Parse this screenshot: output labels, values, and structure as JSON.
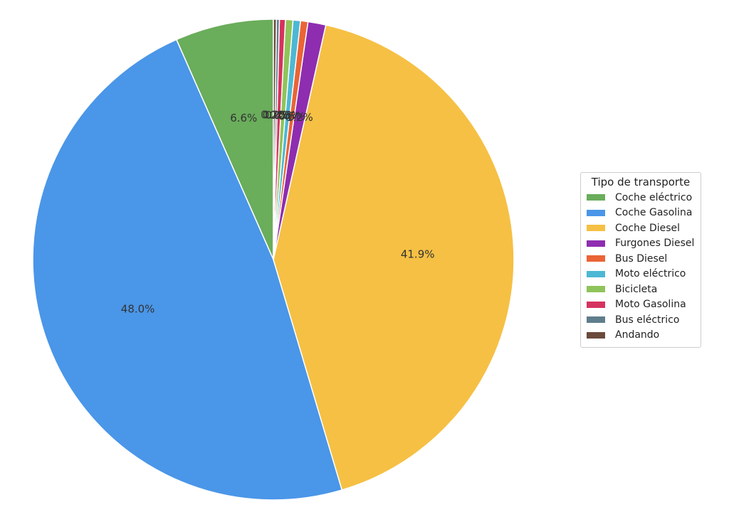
{
  "chart_data": {
    "type": "pie",
    "legend": {
      "title": "Tipo de transporte",
      "position": "right"
    },
    "slices": [
      {
        "label": "Coche eléctrico",
        "value": 6.6,
        "pct_label": "6.6%",
        "color": "#6aad5b"
      },
      {
        "label": "Coche Gasolina",
        "value": 48.0,
        "pct_label": "48.0%",
        "color": "#4a96e8"
      },
      {
        "label": "Coche Diesel",
        "value": 41.9,
        "pct_label": "41.9%",
        "color": "#f5c044"
      },
      {
        "label": "Furgones Diesel",
        "value": 1.2,
        "pct_label": "1.2%",
        "color": "#8e2db0"
      },
      {
        "label": "Bus Diesel",
        "value": 0.5,
        "pct_label": "0.5%",
        "color": "#ea6436"
      },
      {
        "label": "Moto eléctrico",
        "value": 0.5,
        "pct_label": "0.5%",
        "color": "#4db8d4"
      },
      {
        "label": "Bicicleta",
        "value": 0.5,
        "pct_label": "0.5%",
        "color": "#8fc45a"
      },
      {
        "label": "Moto Gasolina",
        "value": 0.4,
        "pct_label": "0.4%",
        "color": "#d6325f"
      },
      {
        "label": "Bus eléctrico",
        "value": 0.2,
        "pct_label": "0.2%",
        "color": "#5f7d8c"
      },
      {
        "label": "Andando",
        "value": 0.2,
        "pct_label": "0.2%",
        "color": "#6b4a3a"
      }
    ]
  }
}
